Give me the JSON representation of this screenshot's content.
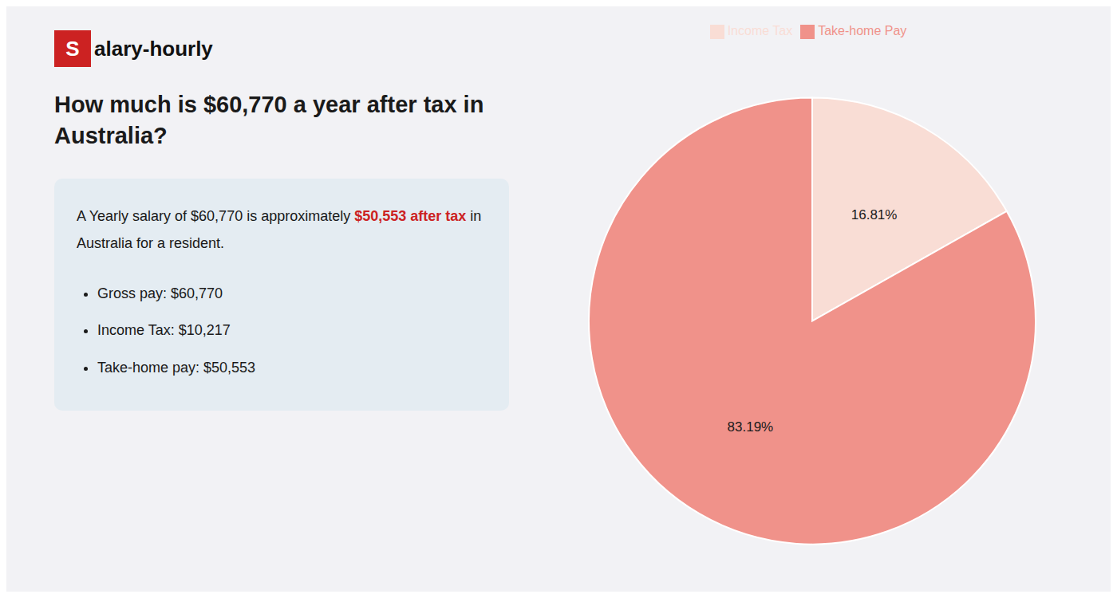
{
  "chart_data": {
    "type": "pie",
    "title": "How much is $60,770 a year after tax in\nAustralia?",
    "categories": [
      "Income Tax",
      "Take-home Pay"
    ],
    "values": [
      16.81,
      83.19
    ],
    "value_labels": [
      "16.81%",
      "83.19%"
    ],
    "colors": [
      "#f9ddd5",
      "#f0928a"
    ],
    "data_labels": true,
    "legend": "top",
    "annotations": [
      "S",
      "alary-hourly",
      "A Yearly salary of $60,770 is approximately ",
      "$50,553 after tax",
      " in",
      "Australia for a resident.",
      "Gross pay: $60,770",
      "Income Tax: $10,217",
      "Take-home pay: $50,553"
    ]
  }
}
